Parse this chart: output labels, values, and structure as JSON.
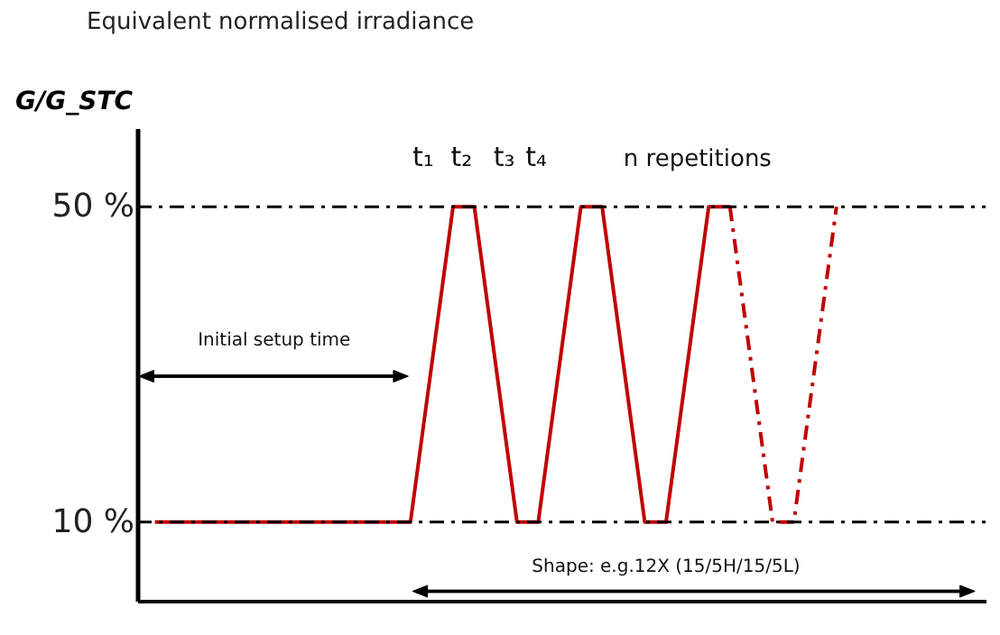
{
  "chart_data": {
    "type": "line",
    "title": "Equivalent normalised irradiance",
    "ylabel": "G/G_STC",
    "categories": [
      null,
      null,
      null,
      null,
      null,
      null,
      null,
      null,
      null,
      null,
      null,
      null,
      null,
      null,
      null,
      null,
      null,
      null,
      null,
      null,
      null,
      null,
      null,
      null,
      null,
      null,
      null,
      null,
      null,
      null,
      null,
      null,
      null
    ],
    "series": [
      {
        "color": "#c00000",
        "line_style": "solid",
        "values": [
          10,
          10,
          10,
          10,
          10,
          10,
          10,
          10,
          10,
          10,
          10,
          10,
          10,
          30,
          50,
          50,
          30,
          10,
          10,
          30,
          50,
          50,
          30,
          10,
          10,
          30,
          50,
          50,
          null,
          null,
          null,
          null,
          null
        ]
      },
      {
        "color": "#c00000",
        "line_style": "dashed",
        "values": [
          null,
          null,
          null,
          null,
          null,
          null,
          null,
          null,
          null,
          null,
          null,
          null,
          null,
          null,
          null,
          null,
          null,
          null,
          null,
          null,
          null,
          null,
          null,
          null,
          null,
          null,
          null,
          50,
          30,
          10,
          10,
          30,
          50
        ]
      }
    ],
    "ylim": [
      0,
      60
    ],
    "yticks": [
      {
        "value": 10,
        "label": "10 %"
      },
      {
        "value": 50,
        "label": "50 %"
      }
    ],
    "tick_labels": "y",
    "grid": false,
    "marker": "none",
    "ref_lines": [
      {
        "axis": "y",
        "value": 50,
        "color": "#000000",
        "line_style": "dashed"
      },
      {
        "axis": "y",
        "value": 10,
        "color": "#000000",
        "line_style": "dashed"
      }
    ],
    "annotations": [
      "t₁",
      "t₂",
      "t₃",
      "t₄",
      "n repetitions",
      "Initial setup time",
      "Shape: e.g.12X (15/5H/15/5L)"
    ]
  }
}
